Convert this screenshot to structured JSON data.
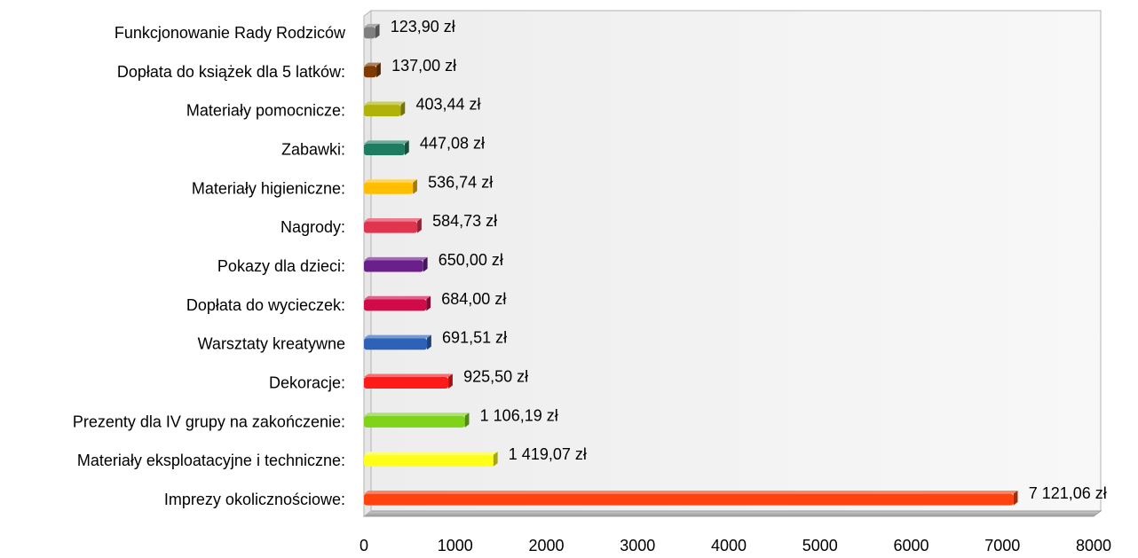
{
  "chart_data": {
    "type": "bar",
    "orientation": "horizontal",
    "style": "3d",
    "title": "",
    "xlabel": "",
    "ylabel": "",
    "xlim": [
      0,
      8000
    ],
    "x_ticks": [
      0,
      1000,
      2000,
      3000,
      4000,
      5000,
      6000,
      7000,
      8000
    ],
    "x_tick_labels": [
      "0",
      "1000",
      "2000",
      "3000",
      "4000",
      "5000",
      "6000",
      "7000",
      "8000"
    ],
    "grid": false,
    "legend": "none",
    "categories": [
      "Funkcjonowanie Rady Rodziców",
      "Dopłata do książek dla 5 latków:",
      "Materiały pomocnicze:",
      "Zabawki:",
      "Materiały higieniczne:",
      "Nagrody:",
      "Pokazy dla dzieci:",
      "Dopłata do wycieczek:",
      "Warsztaty kreatywne",
      "Dekoracje:",
      "Prezenty dla IV grupy na zakończenie:",
      "Materiały eksploatacyjne i techniczne:",
      "Imprezy okolicznościowe:"
    ],
    "values": [
      123.9,
      137.0,
      403.44,
      447.08,
      536.74,
      584.73,
      650.0,
      684.0,
      691.51,
      925.5,
      1106.19,
      1419.07,
      7121.06
    ],
    "value_labels": [
      "123,90 zł",
      "137,00 zł",
      "403,44 zł",
      "447,08 zł",
      "536,74 zł",
      "584,73 zł",
      "650,00 zł",
      "684,00 zł",
      "691,51 zł",
      "925,50 zł",
      "1 106,19 zł",
      "1 419,07 zł",
      "7 121,06 zł"
    ],
    "colors": [
      "#7f7f7f",
      "#7f3a00",
      "#b0b20a",
      "#1e7c60",
      "#ffbf00",
      "#e0344f",
      "#6a1f8a",
      "#d10a4a",
      "#2e62b8",
      "#ff1a1a",
      "#7fd319",
      "#ffff1a",
      "#ff420e"
    ],
    "wall_color": "#f2f2f2",
    "floor_color": "#b3b3b3"
  }
}
